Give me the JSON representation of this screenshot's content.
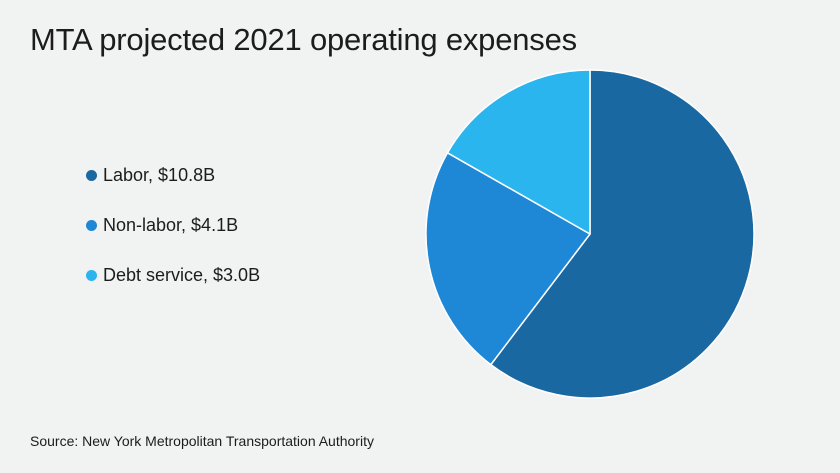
{
  "title": "MTA projected 2021 operating expenses",
  "source": "Source: New York Metropolitan Transportation Authority",
  "chart_data": {
    "type": "pie",
    "title": "MTA projected 2021 operating expenses",
    "unit": "$B",
    "slices": [
      {
        "label": "Labor, $10.8B",
        "category": "Labor",
        "value": 10.8,
        "color": "#1a68a2"
      },
      {
        "label": "Non-labor, $4.1B",
        "category": "Non-labor",
        "value": 4.1,
        "color": "#1e87d6"
      },
      {
        "label": "Debt service, $3.0B",
        "category": "Debt service",
        "value": 3.0,
        "color": "#2ab5ef"
      }
    ],
    "legend_position": "left",
    "start_angle": "12 o'clock",
    "direction": "clockwise"
  }
}
